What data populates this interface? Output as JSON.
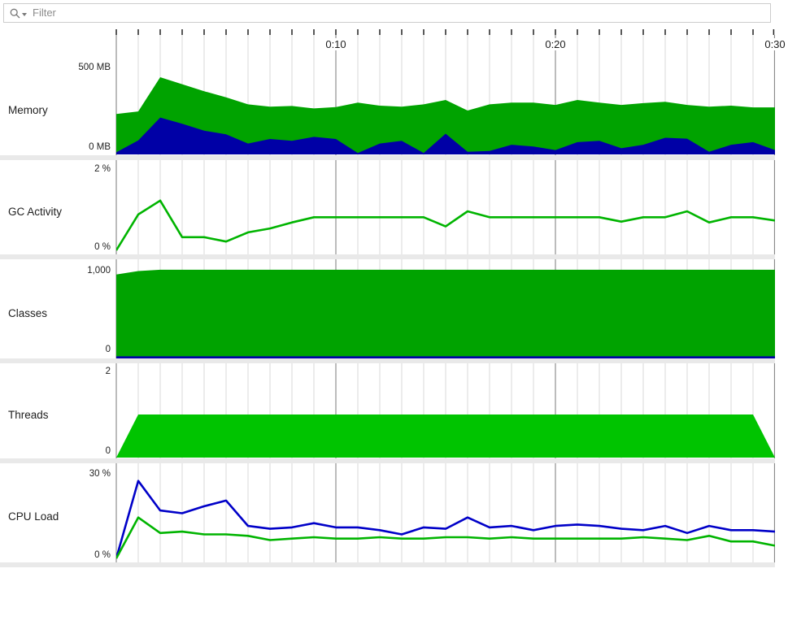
{
  "filter": {
    "placeholder": "Filter"
  },
  "time_axis": {
    "unit": "minutes",
    "start": 0,
    "end": 30,
    "minor_tick_step": 1,
    "major_tick_step": 10,
    "labels": [
      {
        "text": "0:10",
        "minute": 10
      },
      {
        "text": "0:20",
        "minute": 20
      },
      {
        "text": "0:30",
        "minute": 30
      }
    ]
  },
  "colors": {
    "grid_minor": "#d9d9d9",
    "grid_major": "#7a7a7a",
    "tick": "#222222",
    "separator": "#e9e9e9",
    "area_green": "#00A300",
    "bright_green": "#00C400",
    "line_green": "#00B400",
    "fill_navy": "#0000A6",
    "line_blue": "#0000C8"
  },
  "chart_data": [
    {
      "id": "memory",
      "type": "area",
      "title": "Memory",
      "y_axis": {
        "top_label": "500 MB",
        "bottom_label": "0 MB",
        "top_value": 500,
        "bottom_value": 0,
        "unit": "MB"
      },
      "x": {
        "unit": "minutes",
        "start": 0,
        "end": 30,
        "step": 1
      },
      "series": [
        {
          "name": "green",
          "style": "area",
          "color": "#00A300",
          "values": [
            230,
            245,
            440,
            400,
            360,
            325,
            285,
            272,
            276,
            262,
            270,
            295,
            278,
            272,
            285,
            310,
            250,
            285,
            295,
            295,
            282,
            310,
            295,
            282,
            292,
            300,
            282,
            272,
            278,
            268,
            268
          ]
        },
        {
          "name": "blue",
          "style": "area",
          "color": "#0000A6",
          "values": [
            12,
            80,
            210,
            175,
            135,
            115,
            62,
            88,
            78,
            100,
            88,
            8,
            62,
            78,
            8,
            118,
            15,
            20,
            55,
            45,
            25,
            70,
            78,
            35,
            55,
            95,
            90,
            15,
            55,
            70,
            25
          ]
        }
      ]
    },
    {
      "id": "gc-activity",
      "type": "line",
      "title": "GC Activity",
      "y_axis": {
        "top_label": "2 %",
        "bottom_label": "0 %",
        "top_value": 2,
        "bottom_value": 0,
        "unit": "%"
      },
      "x": {
        "unit": "minutes",
        "start": 0,
        "end": 30,
        "step": 1
      },
      "series": [
        {
          "name": "green",
          "style": "line",
          "color": "#00B400",
          "values": [
            0,
            0.9,
            1.25,
            0.33,
            0.33,
            0.22,
            0.45,
            0.55,
            0.7,
            0.83,
            0.83,
            0.83,
            0.83,
            0.83,
            0.83,
            0.6,
            0.98,
            0.83,
            0.83,
            0.83,
            0.83,
            0.83,
            0.83,
            0.72,
            0.83,
            0.83,
            0.98,
            0.7,
            0.83,
            0.83,
            0.75
          ]
        }
      ]
    },
    {
      "id": "classes",
      "type": "area",
      "title": "Classes",
      "y_axis": {
        "top_label": "1,000",
        "bottom_label": "0",
        "top_value": 1000,
        "bottom_value": 0,
        "unit": ""
      },
      "x": {
        "unit": "minutes",
        "start": 0,
        "end": 30,
        "step": 1
      },
      "series": [
        {
          "name": "green",
          "style": "area",
          "color": "#00A300",
          "values": [
            955,
            995,
            1010,
            1010,
            1010,
            1010,
            1010,
            1010,
            1010,
            1010,
            1010,
            1010,
            1010,
            1010,
            1010,
            1010,
            1010,
            1010,
            1010,
            1010,
            1010,
            1010,
            1010,
            1010,
            1010,
            1010,
            1010,
            1010,
            1010,
            1010,
            1010
          ]
        },
        {
          "name": "blue",
          "style": "line",
          "color": "#0000A6",
          "values": [
            3,
            3,
            3,
            3,
            3,
            3,
            3,
            3,
            3,
            3,
            3,
            3,
            3,
            3,
            3,
            3,
            3,
            3,
            3,
            3,
            3,
            3,
            3,
            3,
            3,
            3,
            3,
            3,
            3,
            3,
            3
          ]
        }
      ]
    },
    {
      "id": "threads",
      "type": "area",
      "title": "Threads",
      "y_axis": {
        "top_label": "2",
        "bottom_label": "0",
        "top_value": 2,
        "bottom_value": 0,
        "unit": ""
      },
      "x": {
        "unit": "minutes",
        "start": 0,
        "end": 30,
        "step": 1
      },
      "series": [
        {
          "name": "green",
          "style": "area",
          "color": "#00C400",
          "values": [
            0,
            1,
            1,
            1,
            1,
            1,
            1,
            1,
            1,
            1,
            1,
            1,
            1,
            1,
            1,
            1,
            1,
            1,
            1,
            1,
            1,
            1,
            1,
            1,
            1,
            1,
            1,
            1,
            1,
            1,
            0
          ]
        }
      ]
    },
    {
      "id": "cpu-load",
      "type": "line",
      "title": "CPU Load",
      "y_axis": {
        "top_label": "30 %",
        "bottom_label": "0 %",
        "top_value": 30,
        "bottom_value": 0,
        "unit": "%"
      },
      "x": {
        "unit": "minutes",
        "start": 0,
        "end": 30,
        "step": 1
      },
      "series": [
        {
          "name": "blue",
          "style": "line",
          "color": "#0000C8",
          "values": [
            0,
            27.5,
            17,
            16,
            18.5,
            20.5,
            11.5,
            10.5,
            11,
            12.5,
            11,
            11,
            10,
            8.5,
            11,
            10.5,
            14.5,
            11,
            11.5,
            10,
            11.5,
            12,
            11.5,
            10.5,
            10,
            11.5,
            9,
            11.5,
            10,
            10,
            9.5
          ]
        },
        {
          "name": "green",
          "style": "line",
          "color": "#00B400",
          "values": [
            0,
            14.5,
            9,
            9.5,
            8.5,
            8.5,
            8,
            6.5,
            7,
            7.5,
            7,
            7,
            7.5,
            7,
            7,
            7.5,
            7.5,
            7,
            7.5,
            7,
            7,
            7,
            7,
            7,
            7.5,
            7,
            6.5,
            8,
            6,
            6,
            4.5
          ]
        }
      ]
    }
  ]
}
